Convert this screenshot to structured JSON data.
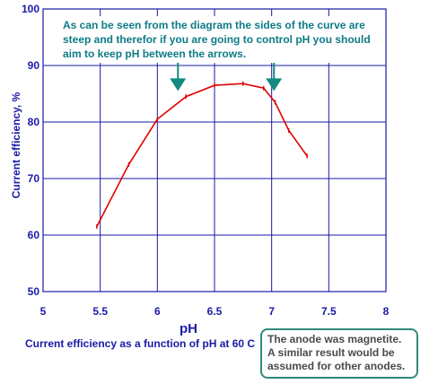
{
  "chart_data": {
    "type": "line",
    "title": "",
    "xlabel": "pH",
    "ylabel": "Current efficiency, %",
    "xlim": [
      5,
      8
    ],
    "ylim": [
      50,
      100
    ],
    "xticks": [
      "5",
      "5.5",
      "6",
      "6.5",
      "7",
      "7.5",
      "8"
    ],
    "yticks": [
      "50",
      "60",
      "70",
      "80",
      "90",
      "100"
    ],
    "grid": true,
    "series": [
      {
        "x": [
          5.47,
          5.75,
          6.0,
          6.25,
          6.5,
          6.75,
          6.93,
          7.03,
          7.15,
          7.31
        ],
        "y": [
          61.5,
          72.5,
          80.5,
          84.5,
          86.5,
          86.8,
          86.0,
          83.5,
          78.5,
          74.0
        ]
      }
    ],
    "arrows": [
      {
        "x": 6.18,
        "y_top": 90.5,
        "y_tip": 85.5
      },
      {
        "x": 7.02,
        "y_top": 90.5,
        "y_tip": 85.5
      }
    ],
    "colors": {
      "line": "#e00000",
      "axis": "#1a1aa6",
      "arrow": "#138a80",
      "text": "#0e7b86"
    }
  },
  "annotation": "As can be seen from the diagram the sides of the curve are steep and therefor if you are going to control pH you should aim to keep pH between the arrows.",
  "caption": "Current efficiency as a function of pH at 60 C",
  "note": "The anode was magnetite. A similar result would be assumed for other anodes."
}
